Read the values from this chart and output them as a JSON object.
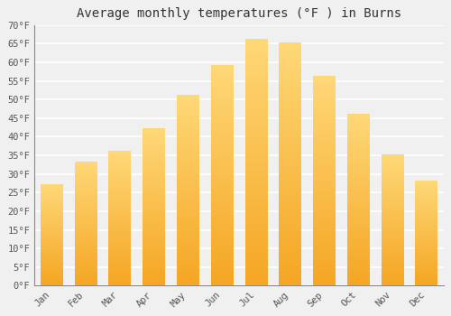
{
  "title": "Average monthly temperatures (°F ) in Burns",
  "months": [
    "Jan",
    "Feb",
    "Mar",
    "Apr",
    "May",
    "Jun",
    "Jul",
    "Aug",
    "Sep",
    "Oct",
    "Nov",
    "Dec"
  ],
  "values": [
    27,
    33,
    36,
    42,
    51,
    59,
    66,
    65,
    56,
    46,
    35,
    28
  ],
  "bar_color_bottom": "#F5A623",
  "bar_color_top": "#FFD080",
  "bar_edge_color": "#FFFFFF",
  "ylim": [
    0,
    70
  ],
  "yticks": [
    0,
    5,
    10,
    15,
    20,
    25,
    30,
    35,
    40,
    45,
    50,
    55,
    60,
    65,
    70
  ],
  "ytick_labels": [
    "0°F",
    "5°F",
    "10°F",
    "15°F",
    "20°F",
    "25°F",
    "30°F",
    "35°F",
    "40°F",
    "45°F",
    "50°F",
    "55°F",
    "60°F",
    "65°F",
    "70°F"
  ],
  "background_color": "#f0f0f0",
  "plot_bg_color": "#f0f0f0",
  "grid_color": "#ffffff",
  "title_fontsize": 10,
  "tick_fontsize": 7.5,
  "font_family": "monospace",
  "bar_width": 0.65
}
